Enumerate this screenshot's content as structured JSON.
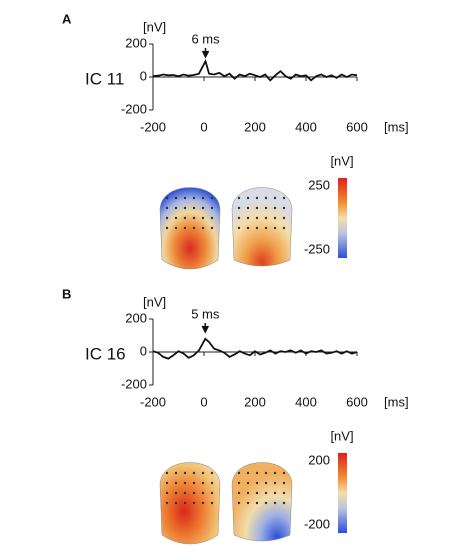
{
  "chart_data": [
    {
      "type": "line",
      "panel": "A",
      "label": "IC 11",
      "y_unit": "[nV]",
      "x_unit": "[ms]",
      "annotation": {
        "value": 6,
        "label": "6 ms"
      },
      "x": [
        -200,
        -180,
        -160,
        -140,
        -120,
        -100,
        -80,
        -60,
        -40,
        -20,
        6,
        20,
        40,
        60,
        80,
        100,
        120,
        140,
        160,
        180,
        200,
        220,
        240,
        260,
        280,
        300,
        320,
        340,
        360,
        380,
        400,
        420,
        440,
        460,
        480,
        500,
        520,
        540,
        560,
        580,
        600
      ],
      "series": [
        {
          "name": "IC 11",
          "color": "#111111",
          "values": [
            5,
            8,
            15,
            10,
            12,
            5,
            15,
            8,
            12,
            20,
            95,
            20,
            15,
            25,
            5,
            20,
            -10,
            15,
            5,
            20,
            10,
            0,
            15,
            -20,
            10,
            35,
            5,
            -10,
            15,
            5,
            10,
            -20,
            5,
            15,
            0,
            10,
            -5,
            15,
            0,
            15,
            10
          ]
        }
      ],
      "xlim": [
        -200,
        600
      ],
      "xticks": [
        -200,
        0,
        200,
        400,
        600
      ],
      "ylim": [
        -200,
        200
      ],
      "yticks": [
        -200,
        0,
        200
      ],
      "colorbar": {
        "unit": "[nV]",
        "clim": [
          -250,
          250
        ],
        "ticks": [
          250,
          -250
        ]
      }
    },
    {
      "type": "line",
      "panel": "B",
      "label": "IC 16",
      "y_unit": "[nV]",
      "x_unit": "[ms]",
      "annotation": {
        "value": 5,
        "label": "5 ms"
      },
      "x": [
        -200,
        -180,
        -160,
        -140,
        -120,
        -100,
        -80,
        -60,
        -40,
        -20,
        5,
        20,
        40,
        60,
        80,
        100,
        120,
        140,
        160,
        180,
        200,
        220,
        240,
        260,
        280,
        300,
        320,
        340,
        360,
        380,
        400,
        420,
        440,
        460,
        480,
        500,
        520,
        540,
        560,
        580,
        600
      ],
      "series": [
        {
          "name": "IC 16",
          "color": "#111111",
          "values": [
            5,
            -5,
            -30,
            -40,
            -20,
            5,
            -10,
            -35,
            -20,
            10,
            80,
            60,
            20,
            10,
            -5,
            -30,
            -15,
            5,
            -10,
            -20,
            5,
            -15,
            -5,
            10,
            -10,
            5,
            0,
            10,
            -5,
            10,
            -10,
            5,
            0,
            10,
            -10,
            -5,
            5,
            -10,
            5,
            -10,
            0
          ]
        }
      ],
      "xlim": [
        -200,
        600
      ],
      "xticks": [
        -200,
        0,
        200,
        400,
        600
      ],
      "ylim": [
        -200,
        200
      ],
      "yticks": [
        -200,
        0,
        200
      ],
      "colorbar": {
        "unit": "[nV]",
        "clim": [
          -200,
          200
        ],
        "ticks": [
          200,
          -200
        ]
      }
    }
  ]
}
